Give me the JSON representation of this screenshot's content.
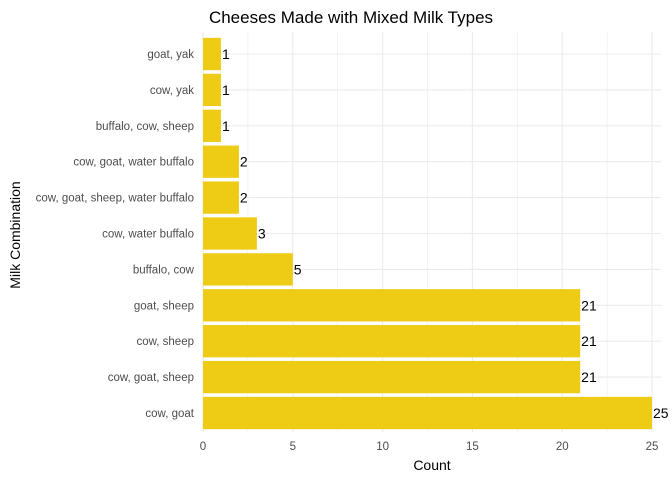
{
  "chart_data": {
    "type": "bar",
    "orientation": "horizontal",
    "title": "Cheeses Made with Mixed Milk Types",
    "xlabel": "Count",
    "ylabel": "Milk Combination",
    "categories": [
      "goat, yak",
      "cow, yak",
      "buffalo, cow, sheep",
      "cow, goat, water buffalo",
      "cow, goat, sheep, water buffalo",
      "cow, water buffalo",
      "buffalo, cow",
      "goat, sheep",
      "cow, sheep",
      "cow, goat, sheep",
      "cow, goat"
    ],
    "values": [
      1,
      1,
      1,
      2,
      2,
      3,
      5,
      21,
      21,
      21,
      25
    ],
    "xlim": [
      0,
      25.5
    ],
    "xticks": [
      0,
      5,
      10,
      15,
      20,
      25
    ],
    "grid": true,
    "legend": "none",
    "bar_color": "#EECC16",
    "grid_color": "#EBEBEB"
  }
}
